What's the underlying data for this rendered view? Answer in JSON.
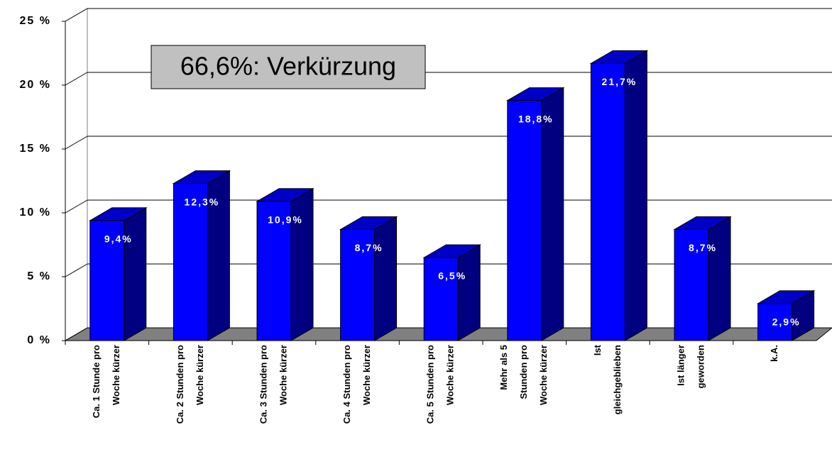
{
  "chart_data": {
    "type": "bar3d",
    "annotation": "66,6%: Verkürzung",
    "categories": [
      [
        "Ca. 1 Stunde pro",
        "Woche kürzer"
      ],
      [
        "Ca. 2 Stunden pro",
        "Woche kürzer"
      ],
      [
        "Ca. 3 Stunden pro",
        "Woche kürzer"
      ],
      [
        "Ca. 4 Stunden pro",
        "Woche kürzer"
      ],
      [
        "Ca. 5 Stunden pro",
        "Woche kürzer"
      ],
      [
        "Mehr als 5",
        "Stunden pro",
        "Woche kürzer"
      ],
      [
        "Ist",
        "gleichgeblieben"
      ],
      [
        "Ist länger",
        "geworden"
      ],
      [
        "k.A."
      ]
    ],
    "values": [
      9.4,
      12.3,
      10.9,
      8.7,
      6.5,
      18.8,
      21.7,
      8.7,
      2.9
    ],
    "value_labels": [
      "9,4%",
      "12,3%",
      "10,9%",
      "8,7%",
      "6,5%",
      "18,8%",
      "21,7%",
      "8,7%",
      "2,9%"
    ],
    "color": "#0000ff",
    "side_color": "#000080",
    "top_color": "#0000c8",
    "ylim": [
      0,
      25
    ],
    "yticks": [
      {
        "value": 0,
        "label": "0 %"
      },
      {
        "value": 5,
        "label": "5 %"
      },
      {
        "value": 10,
        "label": "10 %"
      },
      {
        "value": 15,
        "label": "15 %"
      },
      {
        "value": 20,
        "label": "20 %"
      },
      {
        "value": 25,
        "label": "25 %"
      }
    ],
    "grid": true
  }
}
